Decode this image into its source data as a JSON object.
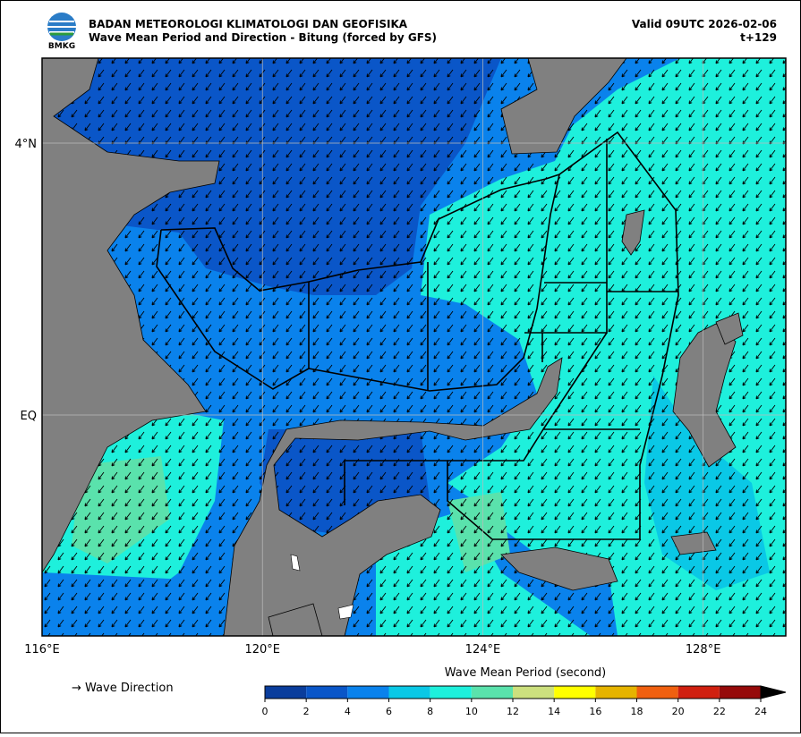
{
  "header": {
    "logo_text": "BMKG",
    "agency": "BADAN METEOROLOGI KLIMATOLOGI DAN GEOFISIKA",
    "title": "Wave Mean Period and Direction - Bitung (forced by GFS)",
    "valid": "Valid 09UTC 2026-02-06",
    "step": "t+129"
  },
  "map": {
    "xlim": [
      116,
      129.5
    ],
    "ylim": [
      -3.25,
      5.25
    ],
    "xticks": [
      {
        "value": 116,
        "label": "116°E"
      },
      {
        "value": 120,
        "label": "120°E"
      },
      {
        "value": 124,
        "label": "124°E"
      },
      {
        "value": 128,
        "label": "128°E"
      }
    ],
    "yticks": [
      {
        "value": 0,
        "label": "EQ"
      },
      {
        "value": 4,
        "label": "4°N"
      }
    ],
    "grid": true
  },
  "legend": {
    "label": "→  Wave Direction"
  },
  "colorbar": {
    "title": "Wave Mean Period (second)",
    "ticks": [
      0,
      2,
      4,
      6,
      8,
      10,
      12,
      14,
      16,
      18,
      20,
      22,
      24
    ],
    "colors": [
      "#0a3d9c",
      "#0a56c8",
      "#0a82ec",
      "#0ac8e6",
      "#1ef0dc",
      "#5ae2ac",
      "#cce07e",
      "#ffff00",
      "#e6b400",
      "#f06010",
      "#d02010",
      "#960a0a"
    ],
    "extend_color": "#000000"
  }
}
